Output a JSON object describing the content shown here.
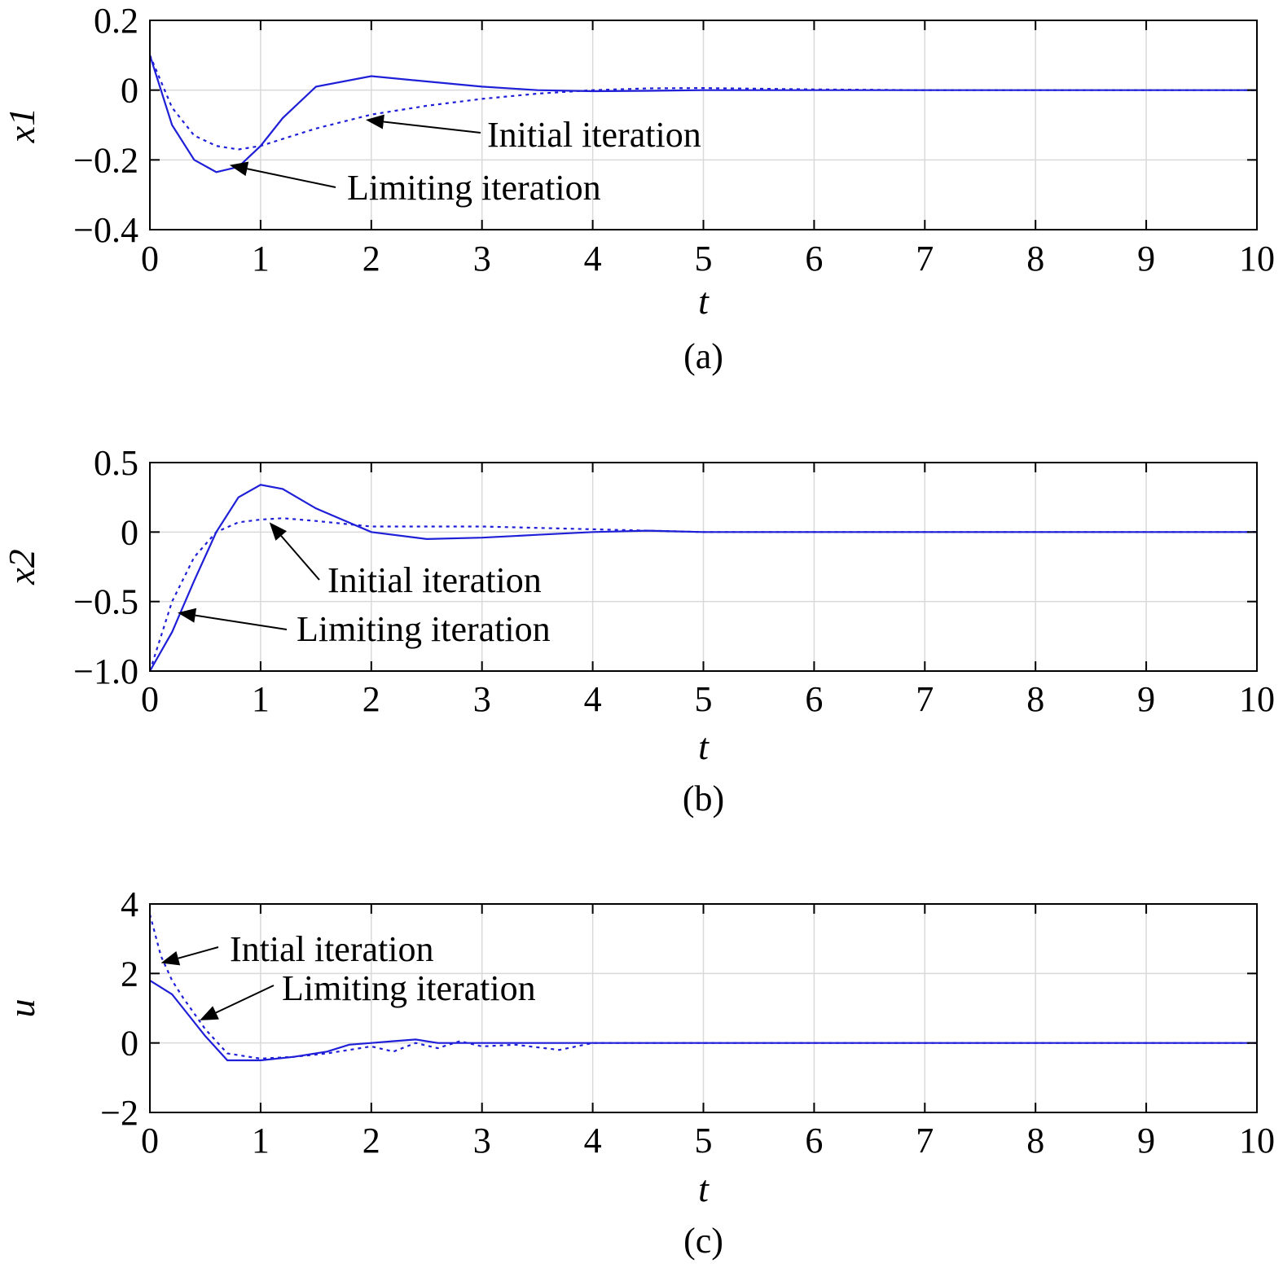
{
  "colors": {
    "curve": "#1f1fd8",
    "grid": "#d9d9d9",
    "axis": "#000000"
  },
  "chart_data": [
    {
      "type": "line",
      "caption": "(a)",
      "xlabel": "t",
      "ylabel": "x1",
      "xlim": [
        0,
        10
      ],
      "ylim": [
        -0.4,
        0.2
      ],
      "xticks": [
        "0",
        "1",
        "2",
        "3",
        "4",
        "5",
        "6",
        "7",
        "8",
        "9",
        "10"
      ],
      "yticks": [
        "0.2",
        "0",
        "−0.2",
        "−0.4"
      ],
      "ytick_values": [
        0.2,
        0,
        -0.2,
        -0.4
      ],
      "grid": true,
      "annotations": [
        {
          "text": "Initial iteration",
          "x": 1.95,
          "y": -0.085
        },
        {
          "text": "Limiting iteration",
          "x": 0.72,
          "y": -0.215
        }
      ],
      "series": [
        {
          "style": "dashed",
          "x": [
            0,
            0.2,
            0.4,
            0.6,
            0.8,
            1.0,
            1.2,
            1.5,
            2.0,
            2.5,
            3.0,
            3.5,
            4.0,
            4.5,
            5.0,
            6.0,
            7.0,
            8.0,
            10.0
          ],
          "y": [
            0.1,
            -0.05,
            -0.13,
            -0.16,
            -0.17,
            -0.16,
            -0.14,
            -0.11,
            -0.07,
            -0.045,
            -0.025,
            -0.01,
            0.0,
            0.005,
            0.006,
            0.002,
            0.0,
            0.0,
            0.0
          ]
        },
        {
          "style": "solid",
          "x": [
            0,
            0.2,
            0.4,
            0.6,
            0.8,
            1.0,
            1.2,
            1.5,
            2.0,
            2.5,
            3.0,
            3.5,
            4.0,
            4.5,
            5.0,
            6.0,
            7.0,
            8.0,
            10.0
          ],
          "y": [
            0.1,
            -0.1,
            -0.2,
            -0.235,
            -0.22,
            -0.16,
            -0.08,
            0.01,
            0.04,
            0.025,
            0.01,
            0.0,
            -0.003,
            -0.002,
            0.0,
            0.0,
            0.0,
            0.0,
            0.0
          ]
        }
      ]
    },
    {
      "type": "line",
      "caption": "(b)",
      "xlabel": "t",
      "ylabel": "x2",
      "xlim": [
        0,
        10
      ],
      "ylim": [
        -1.0,
        0.5
      ],
      "xticks": [
        "0",
        "1",
        "2",
        "3",
        "4",
        "5",
        "6",
        "7",
        "8",
        "9",
        "10"
      ],
      "yticks": [
        "0.5",
        "0",
        "−0.5",
        "−1.0"
      ],
      "ytick_values": [
        0.5,
        0,
        -0.5,
        -1.0
      ],
      "grid": true,
      "annotations": [
        {
          "text": "Initial iteration",
          "x": 1.08,
          "y": 0.07
        },
        {
          "text": "Limiting iteration",
          "x": 0.25,
          "y": -0.58
        }
      ],
      "series": [
        {
          "style": "dashed",
          "x": [
            0,
            0.2,
            0.4,
            0.6,
            0.8,
            1.0,
            1.2,
            1.5,
            2.0,
            2.5,
            3.0,
            3.5,
            4.0,
            4.5,
            5.0,
            6.0,
            7.0,
            10.0
          ],
          "y": [
            -1.0,
            -0.5,
            -0.18,
            0.0,
            0.07,
            0.09,
            0.1,
            0.08,
            0.04,
            0.04,
            0.04,
            0.03,
            0.02,
            0.01,
            0.0,
            0.0,
            0.0,
            0.0
          ]
        },
        {
          "style": "solid",
          "x": [
            0,
            0.2,
            0.4,
            0.6,
            0.8,
            1.0,
            1.2,
            1.5,
            2.0,
            2.5,
            3.0,
            3.5,
            4.0,
            4.5,
            5.0,
            6.0,
            7.0,
            10.0
          ],
          "y": [
            -1.0,
            -0.72,
            -0.35,
            0.0,
            0.25,
            0.34,
            0.31,
            0.17,
            0.0,
            -0.05,
            -0.04,
            -0.02,
            0.0,
            0.01,
            0.0,
            0.0,
            0.0,
            0.0
          ]
        }
      ]
    },
    {
      "type": "line",
      "caption": "(c)",
      "xlabel": "t",
      "ylabel": "u",
      "xlim": [
        0,
        10
      ],
      "ylim": [
        -2,
        4
      ],
      "xticks": [
        "0",
        "1",
        "2",
        "3",
        "4",
        "5",
        "6",
        "7",
        "8",
        "9",
        "10"
      ],
      "yticks": [
        "4",
        "2",
        "0",
        "−2"
      ],
      "ytick_values": [
        4,
        2,
        0,
        -2
      ],
      "grid": true,
      "annotations": [
        {
          "text": "Intial iteration",
          "x": 0.1,
          "y": 2.3
        },
        {
          "text": "Limiting iteration",
          "x": 0.45,
          "y": 0.65
        }
      ],
      "series": [
        {
          "style": "dashed",
          "x": [
            0,
            0.1,
            0.2,
            0.3,
            0.5,
            0.7,
            1.0,
            1.3,
            1.6,
            1.8,
            2.0,
            2.2,
            2.4,
            2.6,
            2.8,
            3.0,
            3.3,
            3.7,
            4.0,
            10.0
          ],
          "y": [
            3.7,
            2.5,
            1.8,
            1.3,
            0.4,
            -0.3,
            -0.45,
            -0.4,
            -0.3,
            -0.2,
            -0.1,
            -0.25,
            0.0,
            -0.15,
            0.05,
            -0.1,
            -0.05,
            -0.2,
            0.0,
            0.0
          ]
        },
        {
          "style": "solid",
          "x": [
            0,
            0.1,
            0.2,
            0.3,
            0.5,
            0.7,
            1.0,
            1.3,
            1.6,
            1.8,
            2.0,
            2.2,
            2.4,
            2.6,
            2.8,
            3.0,
            3.3,
            3.7,
            4.0,
            10.0
          ],
          "y": [
            1.8,
            1.6,
            1.4,
            1.0,
            0.2,
            -0.5,
            -0.5,
            -0.4,
            -0.25,
            -0.05,
            0.0,
            0.05,
            0.1,
            0.0,
            0.0,
            0.0,
            0.0,
            0.0,
            0.0,
            0.0
          ]
        }
      ]
    }
  ]
}
